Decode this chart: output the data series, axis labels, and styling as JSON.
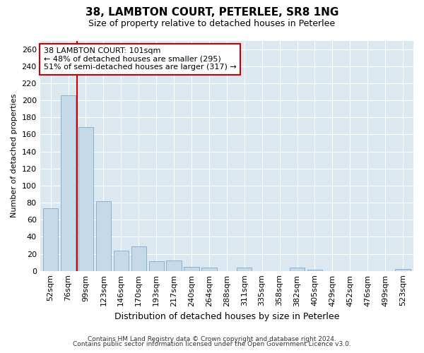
{
  "title": "38, LAMBTON COURT, PETERLEE, SR8 1NG",
  "subtitle": "Size of property relative to detached houses in Peterlee",
  "xlabel": "Distribution of detached houses by size in Peterlee",
  "ylabel": "Number of detached properties",
  "footnote1": "Contains HM Land Registry data © Crown copyright and database right 2024.",
  "footnote2": "Contains public sector information licensed under the Open Government Licence v3.0.",
  "annotation_title": "38 LAMBTON COURT: 101sqm",
  "annotation_line1": "← 48% of detached houses are smaller (295)",
  "annotation_line2": "51% of semi-detached houses are larger (317) →",
  "property_line_index": 2,
  "bar_color": "#c6d9e8",
  "bar_edge_color": "#7aaac8",
  "property_line_color": "#cc0000",
  "annotation_box_edgecolor": "#cc0000",
  "background_color": "#dce8f0",
  "grid_color": "#ffffff",
  "categories": [
    "52sqm",
    "76sqm",
    "99sqm",
    "123sqm",
    "146sqm",
    "170sqm",
    "193sqm",
    "217sqm",
    "240sqm",
    "264sqm",
    "288sqm",
    "311sqm",
    "335sqm",
    "358sqm",
    "382sqm",
    "405sqm",
    "429sqm",
    "452sqm",
    "476sqm",
    "499sqm",
    "523sqm"
  ],
  "values": [
    73,
    206,
    169,
    82,
    24,
    29,
    11,
    12,
    5,
    4,
    0,
    4,
    0,
    0,
    4,
    1,
    0,
    0,
    0,
    0,
    2
  ],
  "ylim": [
    0,
    270
  ],
  "yticks": [
    0,
    20,
    40,
    60,
    80,
    100,
    120,
    140,
    160,
    180,
    200,
    220,
    240,
    260
  ],
  "title_fontsize": 11,
  "subtitle_fontsize": 9,
  "ylabel_fontsize": 8,
  "xlabel_fontsize": 9,
  "tick_fontsize": 8,
  "annot_fontsize": 8,
  "footnote_fontsize": 6.5
}
